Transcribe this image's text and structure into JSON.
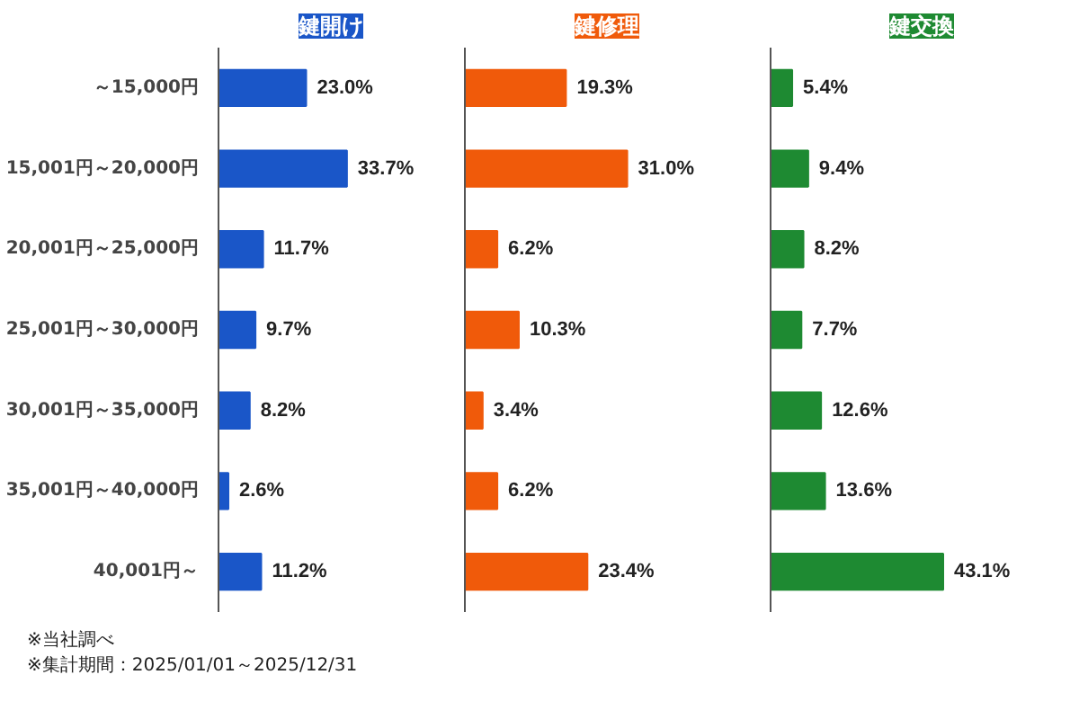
{
  "chart_data": [
    {
      "type": "bar",
      "orientation": "horizontal",
      "title": "鍵開け",
      "categories": [
        "～15,000円",
        "15,001円～20,000円",
        "20,001円～25,000円",
        "25,001円～30,000円",
        "30,001円～35,000円",
        "35,001円～40,000円",
        "40,001円～"
      ],
      "values": [
        23.0,
        33.7,
        11.7,
        9.7,
        8.2,
        2.6,
        11.2
      ],
      "value_labels": [
        "23.0%",
        "33.7%",
        "11.7%",
        "9.7%",
        "8.2%",
        "2.6%",
        "11.2%"
      ],
      "color": "#1a56c8",
      "tick_labels": "y",
      "annotations": [
        "※当社調べ",
        "※集計期間：2025/01/01～2025/12/31"
      ]
    },
    {
      "type": "bar",
      "orientation": "horizontal",
      "title": "鍵修理",
      "values": [
        19.3,
        31.0,
        6.2,
        10.3,
        3.4,
        6.2,
        23.4
      ],
      "value_labels": [
        "19.3%",
        "31.0%",
        "6.2%",
        "10.3%",
        "3.4%",
        "6.2%",
        "23.4%"
      ],
      "color": "#f05a0a",
      "tick_labels": false
    },
    {
      "type": "bar",
      "orientation": "horizontal",
      "title": "鍵交換",
      "values": [
        5.4,
        9.4,
        8.2,
        7.7,
        12.6,
        13.6,
        43.1
      ],
      "value_labels": [
        "5.4%",
        "9.4%",
        "8.2%",
        "7.7%",
        "12.6%",
        "13.6%",
        "43.1%"
      ],
      "color": "#1e8a32",
      "tick_labels": false
    }
  ]
}
